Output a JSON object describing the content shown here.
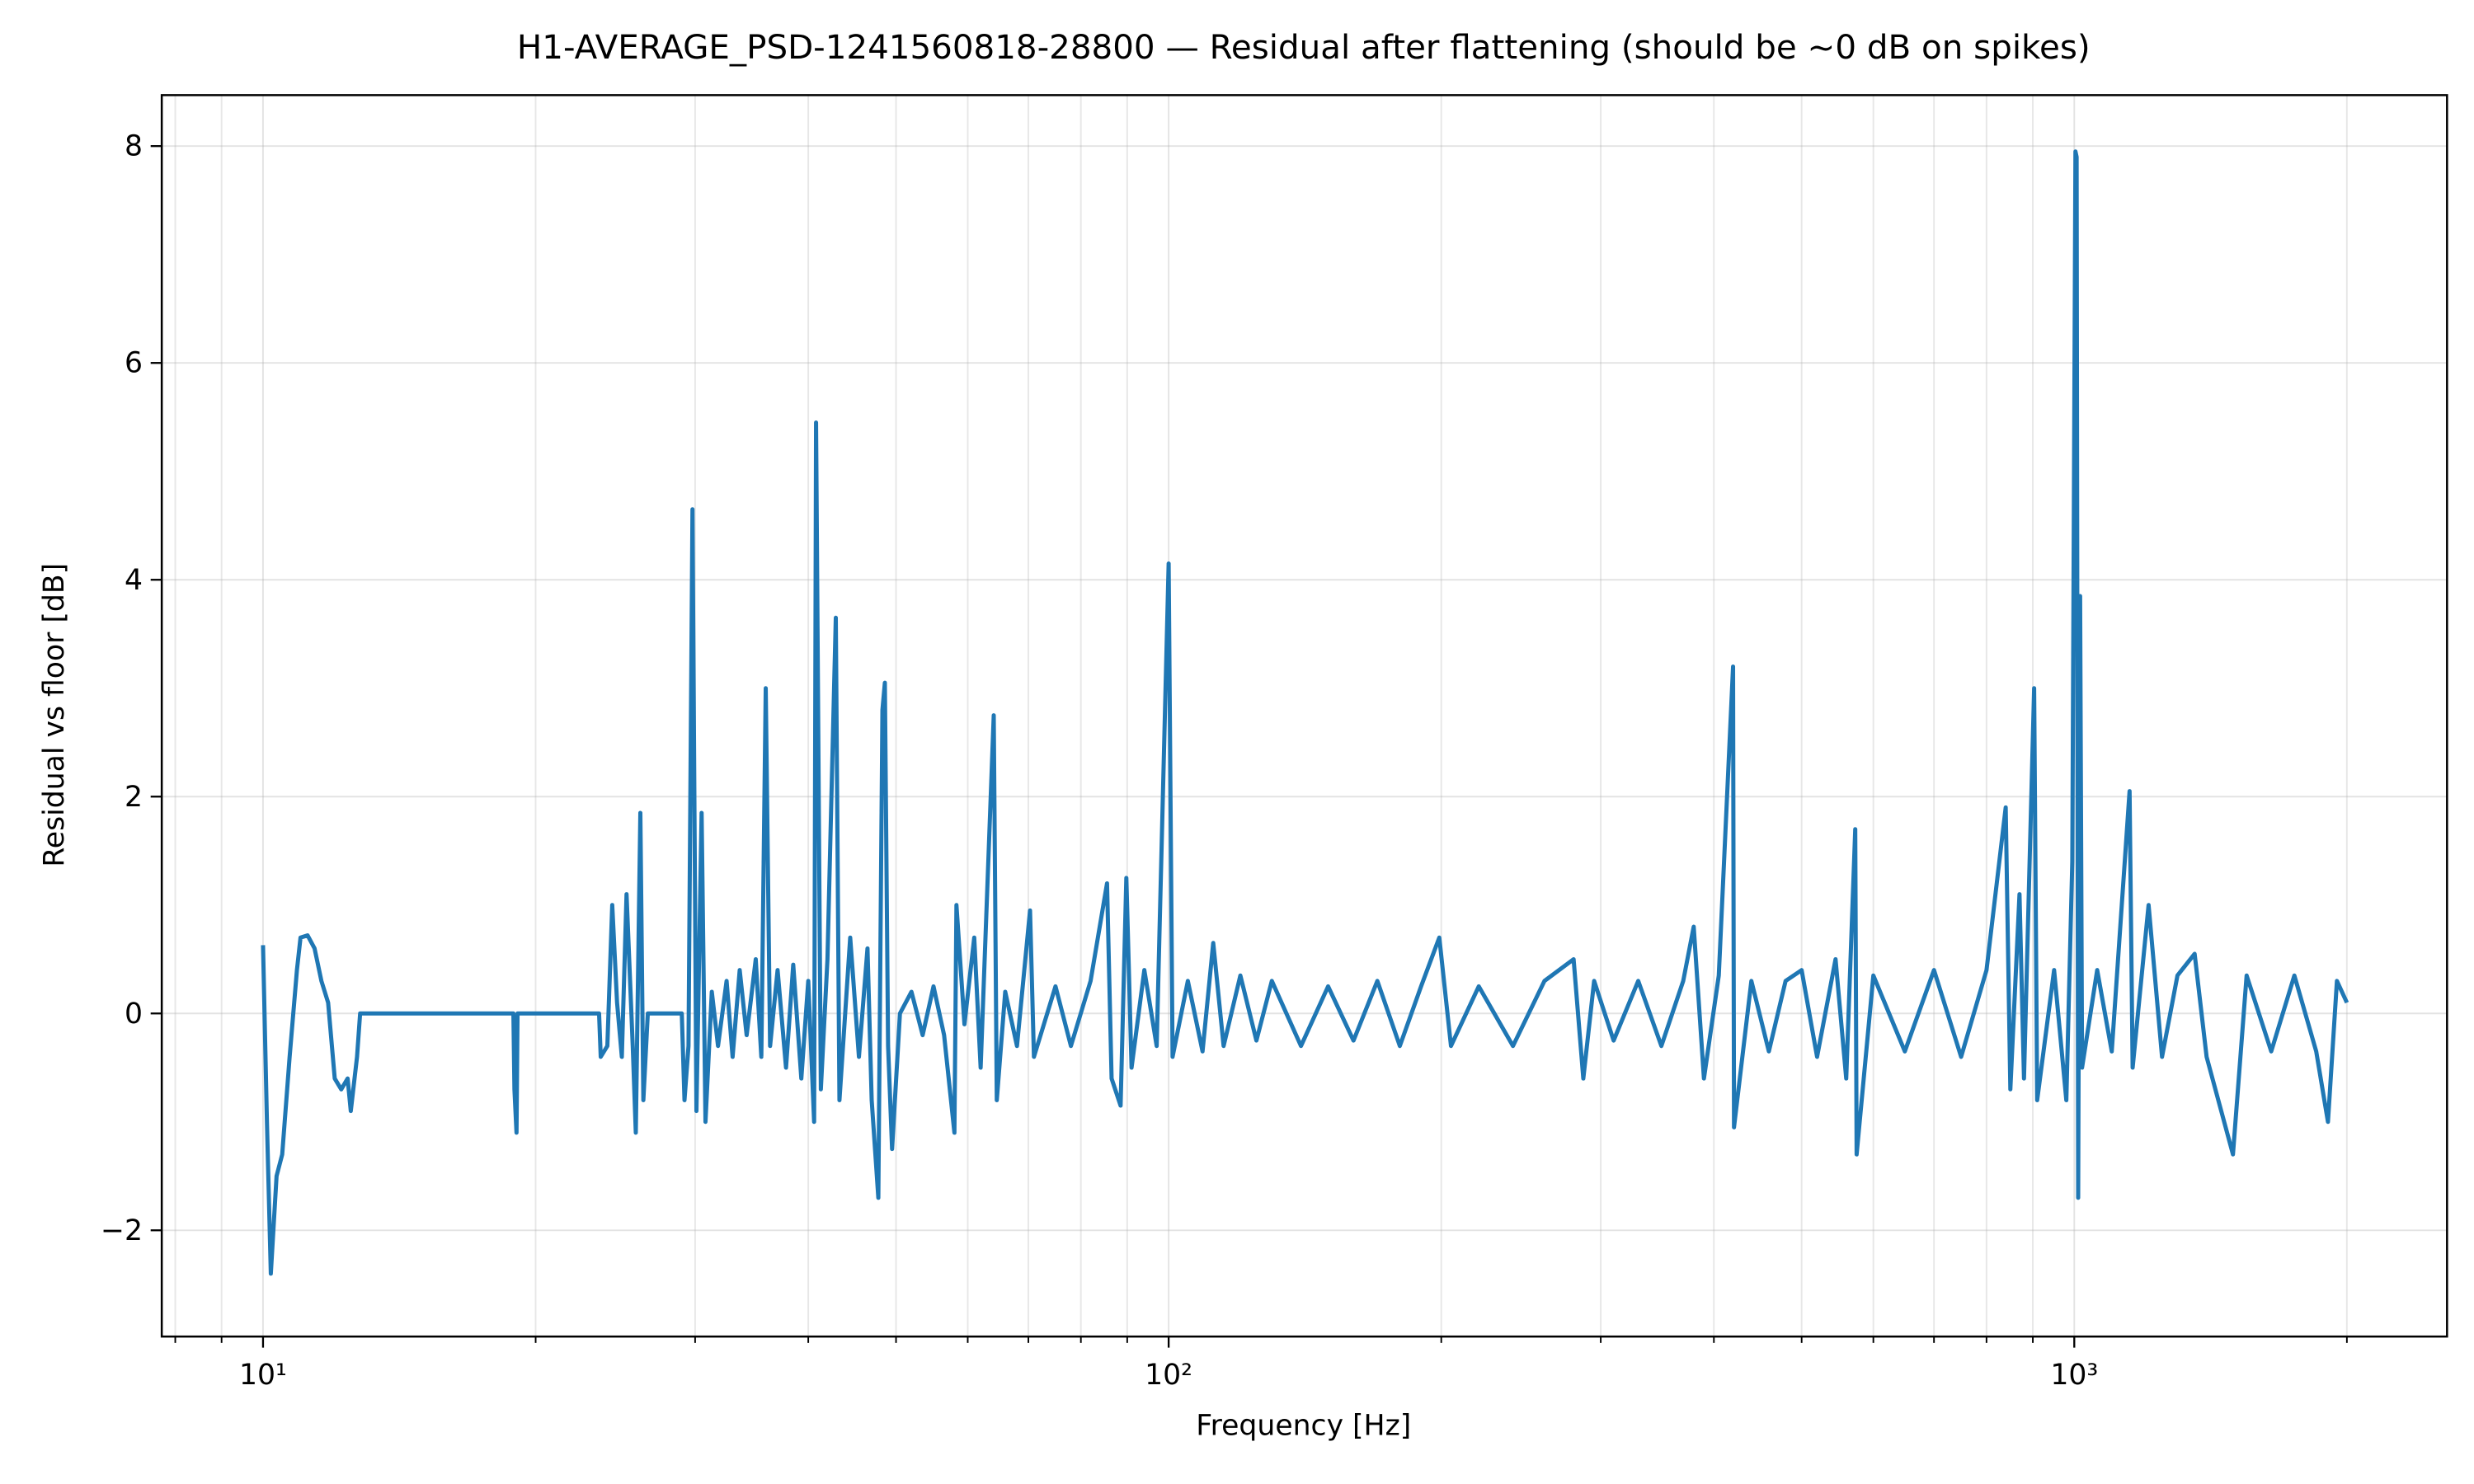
{
  "chart_data": {
    "type": "line",
    "title": "H1-AVERAGE_PSD-1241560818-28800 — Residual after flattening (should be ~0 dB on spikes)",
    "xlabel": "Frequency [Hz]",
    "ylabel": "Residual vs floor [dB]",
    "xscale": "log",
    "grid": true,
    "color": "#1f77b4",
    "xlim": [
      7.73,
      2580
    ],
    "ylim": [
      -2.98,
      8.47
    ],
    "xticks": [
      {
        "value": 10,
        "label": "10¹"
      },
      {
        "value": 100,
        "label": "10²"
      },
      {
        "value": 1000,
        "label": "10³"
      }
    ],
    "xminorticks": [
      8,
      9,
      20,
      30,
      40,
      50,
      60,
      70,
      80,
      90,
      200,
      300,
      400,
      500,
      600,
      700,
      800,
      900,
      2000
    ],
    "yticks": [
      {
        "value": -2,
        "label": "−2"
      },
      0,
      2,
      4,
      6,
      8
    ],
    "x": [
      10,
      10.1,
      10.2,
      10.35,
      10.5,
      10.7,
      10.9,
      11.0,
      11.2,
      11.4,
      11.6,
      11.8,
      12.0,
      12.2,
      12.4,
      12.5,
      12.7,
      12.8,
      18.9,
      18.95,
      19.05,
      19.1,
      23.5,
      23.6,
      24.0,
      24.3,
      24.6,
      24.9,
      25.2,
      25.6,
      25.8,
      26.1,
      26.3,
      26.6,
      29.0,
      29.2,
      29.5,
      29.8,
      30.1,
      30.5,
      30.8,
      31.3,
      31.8,
      32.5,
      33.0,
      33.6,
      34.2,
      35.0,
      35.5,
      35.9,
      36.3,
      37.0,
      37.8,
      38.5,
      39.3,
      40.0,
      40.6,
      40.8,
      41.3,
      42.0,
      42.9,
      43.3,
      44.5,
      45.5,
      46.5,
      47.0,
      47.8,
      48.3,
      48.6,
      49.0,
      49.5,
      50.5,
      52.0,
      53.5,
      55.0,
      56.5,
      58.0,
      58.3,
      59.5,
      61.0,
      62.0,
      64.1,
      64.6,
      66.0,
      68.0,
      70.3,
      71.0,
      75.0,
      78.0,
      82.0,
      85.5,
      86.5,
      88.5,
      89.8,
      91.0,
      94.0,
      97.0,
      100.0,
      101.0,
      105.0,
      109.0,
      112.0,
      115.0,
      120.0,
      125.0,
      130.0,
      140.0,
      150.0,
      160.0,
      170.0,
      180.0,
      190.0,
      199.0,
      205.0,
      220.0,
      240.0,
      260.0,
      280.0,
      287.0,
      295.0,
      310.0,
      330.0,
      350.0,
      370.0,
      380.0,
      390.0,
      405.0,
      420.0,
      421.0,
      440.0,
      460.0,
      480.0,
      500.0,
      520.0,
      545.0,
      560.0,
      573.0,
      575.0,
      600.0,
      650.0,
      700.0,
      750.0,
      800.0,
      840.0,
      850.0,
      870.0,
      880.0,
      903.0,
      910.0,
      950.0,
      980.0,
      995.0,
      1003,
      1006,
      1010,
      1015,
      1020,
      1060,
      1100,
      1151,
      1160,
      1208,
      1250,
      1300,
      1358,
      1400,
      1497,
      1550,
      1650,
      1750,
      1850,
      1906,
      1950,
      2000
    ],
    "values": [
      0.63,
      -1.0,
      -2.4,
      -1.5,
      -1.3,
      -0.4,
      0.4,
      0.7,
      0.72,
      0.6,
      0.3,
      0.1,
      -0.6,
      -0.7,
      -0.6,
      -0.9,
      -0.4,
      0,
      0,
      -0.7,
      -1.1,
      0,
      0,
      -0.4,
      -0.3,
      1.0,
      0.1,
      -0.4,
      1.1,
      -0.3,
      -1.1,
      1.85,
      -0.8,
      0,
      0,
      -0.8,
      -0.3,
      4.65,
      -0.9,
      1.85,
      -1.0,
      0.2,
      -0.3,
      0.3,
      -0.4,
      0.4,
      -0.2,
      0.5,
      -0.4,
      3.0,
      -0.3,
      0.4,
      -0.5,
      0.45,
      -0.6,
      0.3,
      -1.0,
      5.45,
      -0.7,
      0.5,
      3.65,
      -0.8,
      0.7,
      -0.4,
      0.6,
      -0.8,
      -1.7,
      2.8,
      3.05,
      -0.3,
      -1.25,
      0.0,
      0.2,
      -0.2,
      0.25,
      -0.2,
      -1.1,
      1.0,
      -0.1,
      0.7,
      -0.5,
      2.75,
      -0.8,
      0.2,
      -0.3,
      0.95,
      -0.4,
      0.25,
      -0.3,
      0.3,
      1.2,
      -0.6,
      -0.85,
      1.25,
      -0.5,
      0.4,
      -0.3,
      4.15,
      -0.4,
      0.3,
      -0.35,
      0.65,
      -0.3,
      0.35,
      -0.25,
      0.3,
      -0.3,
      0.25,
      -0.25,
      0.3,
      -0.3,
      0.25,
      0.7,
      -0.3,
      0.25,
      -0.3,
      0.3,
      0.5,
      -0.6,
      0.3,
      -0.25,
      0.3,
      -0.3,
      0.3,
      0.8,
      -0.6,
      0.35,
      3.2,
      -1.05,
      0.3,
      -0.35,
      0.3,
      0.4,
      -0.4,
      0.5,
      -0.6,
      1.7,
      -1.3,
      0.35,
      -0.35,
      0.4,
      -0.4,
      0.4,
      1.9,
      -0.7,
      1.1,
      -0.6,
      3.0,
      -0.8,
      0.4,
      -0.8,
      1.4,
      7.95,
      7.9,
      -1.7,
      3.85,
      -0.5,
      0.4,
      -0.35,
      2.05,
      -0.5,
      1.0,
      -0.4,
      0.35,
      0.55,
      -0.4,
      -1.3,
      0.35,
      -0.35,
      0.35,
      -0.35,
      -1.0,
      0.3,
      0.1
    ]
  }
}
